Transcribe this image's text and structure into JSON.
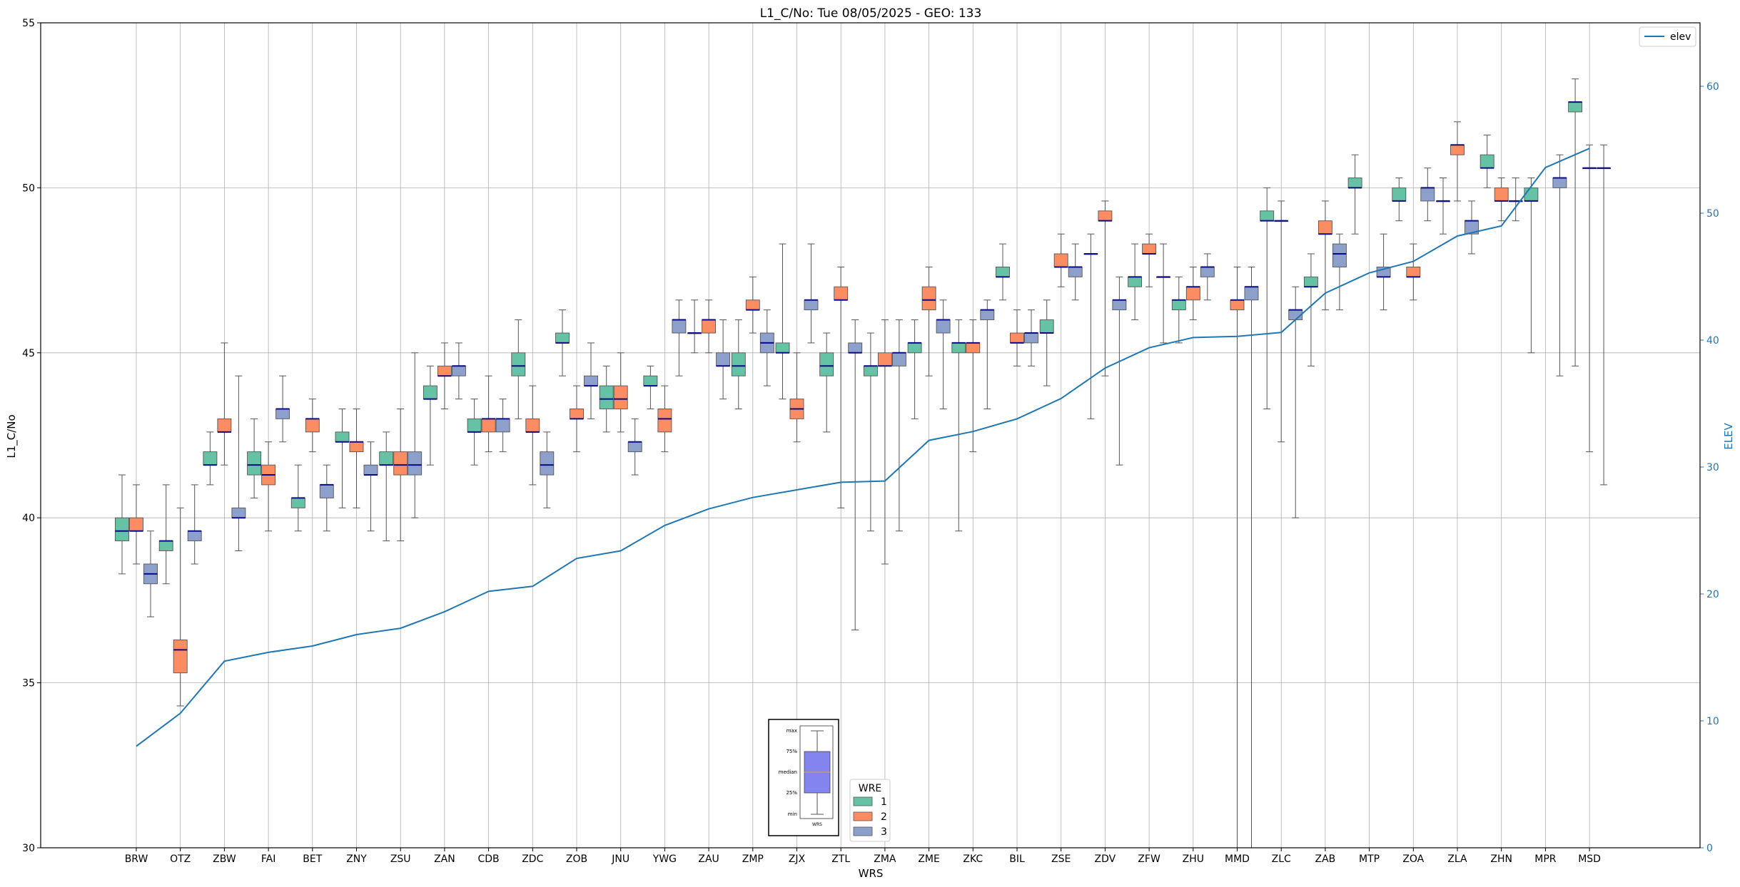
{
  "chart_data": {
    "type": "box",
    "title": "L1_C/No: Tue 08/05/2025 - GEO: 133",
    "xlabel": "WRS",
    "ylabel": "L1_C/No",
    "y2label": "ELEV",
    "ylim": [
      30,
      55
    ],
    "y2lim": [
      0,
      65
    ],
    "yticks": [
      30,
      35,
      40,
      45,
      50,
      55
    ],
    "y2ticks": [
      0,
      10,
      20,
      30,
      40,
      50,
      60
    ],
    "grid": true,
    "categories": [
      "BRW",
      "OTZ",
      "ZBW",
      "FAI",
      "BET",
      "ZNY",
      "ZSU",
      "ZAN",
      "CDB",
      "ZDC",
      "ZOB",
      "JNU",
      "YWG",
      "ZAU",
      "ZMP",
      "ZJX",
      "ZTL",
      "ZMA",
      "ZME",
      "ZKC",
      "BIL",
      "ZSE",
      "ZDV",
      "ZFW",
      "ZHU",
      "MMD",
      "ZLC",
      "ZAB",
      "MTP",
      "ZOA",
      "ZLA",
      "ZHN",
      "MPR",
      "MSD"
    ],
    "series_legend": {
      "title": "WRE",
      "entries": [
        {
          "label": "1",
          "color": "#66c2a5"
        },
        {
          "label": "2",
          "color": "#fc8d62"
        },
        {
          "label": "3",
          "color": "#8da0cb"
        }
      ],
      "placement": "bottom-center"
    },
    "line_legend": {
      "label": "elev",
      "color": "#1f77b4",
      "placement": "top-right"
    },
    "box_key": {
      "labels": [
        "max",
        "75%",
        "median",
        "25%",
        "min"
      ],
      "caption": "WRS",
      "color": "#7b7bf0"
    },
    "boxes": [
      {
        "cat": "BRW",
        "wre": 1,
        "min": 38.3,
        "q1": 39.3,
        "median": 39.6,
        "q3": 40.0,
        "max": 41.3
      },
      {
        "cat": "BRW",
        "wre": 2,
        "min": 38.6,
        "q1": 39.6,
        "median": 39.6,
        "q3": 40.0,
        "max": 41.0
      },
      {
        "cat": "BRW",
        "wre": 3,
        "min": 37.0,
        "q1": 38.0,
        "median": 38.3,
        "q3": 38.6,
        "max": 39.6
      },
      {
        "cat": "OTZ",
        "wre": 1,
        "min": 38.0,
        "q1": 39.0,
        "median": 39.3,
        "q3": 39.3,
        "max": 41.0
      },
      {
        "cat": "OTZ",
        "wre": 2,
        "min": 34.3,
        "q1": 35.3,
        "median": 36.0,
        "q3": 36.3,
        "max": 40.3
      },
      {
        "cat": "OTZ",
        "wre": 3,
        "min": 38.6,
        "q1": 39.3,
        "median": 39.6,
        "q3": 39.6,
        "max": 41.0
      },
      {
        "cat": "ZBW",
        "wre": 1,
        "min": 41.0,
        "q1": 41.6,
        "median": 41.6,
        "q3": 42.0,
        "max": 42.6
      },
      {
        "cat": "ZBW",
        "wre": 2,
        "min": 41.6,
        "q1": 42.6,
        "median": 42.6,
        "q3": 43.0,
        "max": 45.3
      },
      {
        "cat": "ZBW",
        "wre": 3,
        "min": 39.0,
        "q1": 40.0,
        "median": 40.0,
        "q3": 40.3,
        "max": 44.3
      },
      {
        "cat": "FAI",
        "wre": 1,
        "min": 40.6,
        "q1": 41.3,
        "median": 41.6,
        "q3": 42.0,
        "max": 43.0
      },
      {
        "cat": "FAI",
        "wre": 2,
        "min": 39.6,
        "q1": 41.0,
        "median": 41.3,
        "q3": 41.6,
        "max": 42.3
      },
      {
        "cat": "FAI",
        "wre": 3,
        "min": 42.3,
        "q1": 43.0,
        "median": 43.3,
        "q3": 43.3,
        "max": 44.3
      },
      {
        "cat": "BET",
        "wre": 1,
        "min": 39.6,
        "q1": 40.3,
        "median": 40.6,
        "q3": 40.6,
        "max": 41.6
      },
      {
        "cat": "BET",
        "wre": 2,
        "min": 42.0,
        "q1": 42.6,
        "median": 43.0,
        "q3": 43.0,
        "max": 43.6
      },
      {
        "cat": "BET",
        "wre": 3,
        "min": 39.6,
        "q1": 40.6,
        "median": 41.0,
        "q3": 41.0,
        "max": 41.6
      },
      {
        "cat": "ZNY",
        "wre": 1,
        "min": 40.3,
        "q1": 42.3,
        "median": 42.3,
        "q3": 42.6,
        "max": 43.3
      },
      {
        "cat": "ZNY",
        "wre": 2,
        "min": 40.3,
        "q1": 42.0,
        "median": 42.3,
        "q3": 42.3,
        "max": 43.3
      },
      {
        "cat": "ZNY",
        "wre": 3,
        "min": 39.6,
        "q1": 41.3,
        "median": 41.3,
        "q3": 41.6,
        "max": 42.3
      },
      {
        "cat": "ZSU",
        "wre": 1,
        "min": 39.3,
        "q1": 41.6,
        "median": 41.6,
        "q3": 42.0,
        "max": 42.6
      },
      {
        "cat": "ZSU",
        "wre": 2,
        "min": 39.3,
        "q1": 41.3,
        "median": 41.6,
        "q3": 42.0,
        "max": 43.3
      },
      {
        "cat": "ZSU",
        "wre": 3,
        "min": 40.0,
        "q1": 41.3,
        "median": 41.6,
        "q3": 42.0,
        "max": 45.0
      },
      {
        "cat": "ZAN",
        "wre": 1,
        "min": 41.6,
        "q1": 43.6,
        "median": 43.6,
        "q3": 44.0,
        "max": 44.6
      },
      {
        "cat": "ZAN",
        "wre": 2,
        "min": 43.3,
        "q1": 44.3,
        "median": 44.3,
        "q3": 44.6,
        "max": 45.3
      },
      {
        "cat": "ZAN",
        "wre": 3,
        "min": 43.6,
        "q1": 44.3,
        "median": 44.6,
        "q3": 44.6,
        "max": 45.3
      },
      {
        "cat": "CDB",
        "wre": 1,
        "min": 41.6,
        "q1": 42.6,
        "median": 42.6,
        "q3": 43.0,
        "max": 43.6
      },
      {
        "cat": "CDB",
        "wre": 2,
        "min": 42.0,
        "q1": 42.6,
        "median": 43.0,
        "q3": 43.0,
        "max": 44.3
      },
      {
        "cat": "CDB",
        "wre": 3,
        "min": 42.0,
        "q1": 42.6,
        "median": 43.0,
        "q3": 43.0,
        "max": 43.6
      },
      {
        "cat": "ZDC",
        "wre": 1,
        "min": 43.0,
        "q1": 44.3,
        "median": 44.6,
        "q3": 45.0,
        "max": 46.0
      },
      {
        "cat": "ZDC",
        "wre": 2,
        "min": 41.0,
        "q1": 42.6,
        "median": 42.6,
        "q3": 43.0,
        "max": 44.0
      },
      {
        "cat": "ZDC",
        "wre": 3,
        "min": 40.3,
        "q1": 41.3,
        "median": 41.6,
        "q3": 42.0,
        "max": 42.6
      },
      {
        "cat": "ZOB",
        "wre": 1,
        "min": 44.3,
        "q1": 45.3,
        "median": 45.3,
        "q3": 45.6,
        "max": 46.3
      },
      {
        "cat": "ZOB",
        "wre": 2,
        "min": 42.0,
        "q1": 43.0,
        "median": 43.0,
        "q3": 43.3,
        "max": 44.0
      },
      {
        "cat": "ZOB",
        "wre": 3,
        "min": 43.0,
        "q1": 44.0,
        "median": 44.0,
        "q3": 44.3,
        "max": 45.3
      },
      {
        "cat": "JNU",
        "wre": 1,
        "min": 42.6,
        "q1": 43.3,
        "median": 43.6,
        "q3": 44.0,
        "max": 44.6
      },
      {
        "cat": "JNU",
        "wre": 2,
        "min": 42.6,
        "q1": 43.3,
        "median": 43.6,
        "q3": 44.0,
        "max": 45.0
      },
      {
        "cat": "JNU",
        "wre": 3,
        "min": 41.3,
        "q1": 42.0,
        "median": 42.3,
        "q3": 42.3,
        "max": 43.0
      },
      {
        "cat": "YWG",
        "wre": 1,
        "min": 43.3,
        "q1": 44.0,
        "median": 44.0,
        "q3": 44.3,
        "max": 44.6
      },
      {
        "cat": "YWG",
        "wre": 2,
        "min": 42.0,
        "q1": 42.6,
        "median": 43.0,
        "q3": 43.3,
        "max": 44.0
      },
      {
        "cat": "YWG",
        "wre": 3,
        "min": 44.3,
        "q1": 45.6,
        "median": 46.0,
        "q3": 46.0,
        "max": 46.6
      },
      {
        "cat": "ZAU",
        "wre": 1,
        "min": 45.0,
        "q1": 45.6,
        "median": 45.6,
        "q3": 45.6,
        "max": 46.6
      },
      {
        "cat": "ZAU",
        "wre": 2,
        "min": 45.0,
        "q1": 45.6,
        "median": 46.0,
        "q3": 46.0,
        "max": 46.6
      },
      {
        "cat": "ZAU",
        "wre": 3,
        "min": 43.6,
        "q1": 44.6,
        "median": 44.6,
        "q3": 45.0,
        "max": 46.0
      },
      {
        "cat": "ZMP",
        "wre": 1,
        "min": 43.3,
        "q1": 44.3,
        "median": 44.6,
        "q3": 45.0,
        "max": 46.0
      },
      {
        "cat": "ZMP",
        "wre": 2,
        "min": 45.6,
        "q1": 46.3,
        "median": 46.3,
        "q3": 46.6,
        "max": 47.3
      },
      {
        "cat": "ZMP",
        "wre": 3,
        "min": 44.0,
        "q1": 45.0,
        "median": 45.3,
        "q3": 45.6,
        "max": 46.3
      },
      {
        "cat": "ZJX",
        "wre": 1,
        "min": 43.6,
        "q1": 45.0,
        "median": 45.0,
        "q3": 45.3,
        "max": 48.3
      },
      {
        "cat": "ZJX",
        "wre": 2,
        "min": 42.3,
        "q1": 43.0,
        "median": 43.3,
        "q3": 43.6,
        "max": 45.0
      },
      {
        "cat": "ZJX",
        "wre": 3,
        "min": 45.3,
        "q1": 46.3,
        "median": 46.6,
        "q3": 46.6,
        "max": 48.3
      },
      {
        "cat": "ZTL",
        "wre": 1,
        "min": 42.6,
        "q1": 44.3,
        "median": 44.6,
        "q3": 45.0,
        "max": 45.6
      },
      {
        "cat": "ZTL",
        "wre": 2,
        "min": 40.3,
        "q1": 46.6,
        "median": 46.6,
        "q3": 47.0,
        "max": 47.6
      },
      {
        "cat": "ZTL",
        "wre": 3,
        "min": 36.6,
        "q1": 45.0,
        "median": 45.0,
        "q3": 45.3,
        "max": 46.0
      },
      {
        "cat": "ZMA",
        "wre": 1,
        "min": 39.6,
        "q1": 44.3,
        "median": 44.6,
        "q3": 44.6,
        "max": 45.6
      },
      {
        "cat": "ZMA",
        "wre": 2,
        "min": 38.6,
        "q1": 44.6,
        "median": 44.6,
        "q3": 45.0,
        "max": 46.0
      },
      {
        "cat": "ZMA",
        "wre": 3,
        "min": 39.6,
        "q1": 44.6,
        "median": 45.0,
        "q3": 45.0,
        "max": 46.0
      },
      {
        "cat": "ZME",
        "wre": 1,
        "min": 43.0,
        "q1": 45.0,
        "median": 45.3,
        "q3": 45.3,
        "max": 46.0
      },
      {
        "cat": "ZME",
        "wre": 2,
        "min": 44.3,
        "q1": 46.3,
        "median": 46.6,
        "q3": 47.0,
        "max": 47.6
      },
      {
        "cat": "ZME",
        "wre": 3,
        "min": 43.3,
        "q1": 45.6,
        "median": 46.0,
        "q3": 46.0,
        "max": 46.6
      },
      {
        "cat": "ZKC",
        "wre": 1,
        "min": 39.6,
        "q1": 45.0,
        "median": 45.3,
        "q3": 45.3,
        "max": 46.0
      },
      {
        "cat": "ZKC",
        "wre": 2,
        "min": 42.0,
        "q1": 45.0,
        "median": 45.3,
        "q3": 45.3,
        "max": 46.0
      },
      {
        "cat": "ZKC",
        "wre": 3,
        "min": 43.3,
        "q1": 46.0,
        "median": 46.3,
        "q3": 46.3,
        "max": 46.6
      },
      {
        "cat": "BIL",
        "wre": 1,
        "min": 46.6,
        "q1": 47.3,
        "median": 47.3,
        "q3": 47.6,
        "max": 48.3
      },
      {
        "cat": "BIL",
        "wre": 2,
        "min": 44.6,
        "q1": 45.3,
        "median": 45.3,
        "q3": 45.6,
        "max": 46.3
      },
      {
        "cat": "BIL",
        "wre": 3,
        "min": 44.6,
        "q1": 45.3,
        "median": 45.6,
        "q3": 45.6,
        "max": 46.3
      },
      {
        "cat": "ZSE",
        "wre": 1,
        "min": 44.0,
        "q1": 45.6,
        "median": 45.6,
        "q3": 46.0,
        "max": 46.6
      },
      {
        "cat": "ZSE",
        "wre": 2,
        "min": 47.0,
        "q1": 47.6,
        "median": 47.6,
        "q3": 48.0,
        "max": 48.6
      },
      {
        "cat": "ZSE",
        "wre": 3,
        "min": 46.6,
        "q1": 47.3,
        "median": 47.6,
        "q3": 47.6,
        "max": 48.3
      },
      {
        "cat": "ZDV",
        "wre": 1,
        "min": 43.0,
        "q1": 48.0,
        "median": 48.0,
        "q3": 48.0,
        "max": 48.6
      },
      {
        "cat": "ZDV",
        "wre": 2,
        "min": 44.3,
        "q1": 49.0,
        "median": 49.0,
        "q3": 49.3,
        "max": 49.6
      },
      {
        "cat": "ZDV",
        "wre": 3,
        "min": 41.6,
        "q1": 46.3,
        "median": 46.6,
        "q3": 46.6,
        "max": 47.3
      },
      {
        "cat": "ZFW",
        "wre": 1,
        "min": 46.0,
        "q1": 47.0,
        "median": 47.3,
        "q3": 47.3,
        "max": 48.3
      },
      {
        "cat": "ZFW",
        "wre": 2,
        "min": 47.0,
        "q1": 48.0,
        "median": 48.0,
        "q3": 48.3,
        "max": 48.6
      },
      {
        "cat": "ZFW",
        "wre": 3,
        "min": 45.3,
        "q1": 47.3,
        "median": 47.3,
        "q3": 47.3,
        "max": 48.3
      },
      {
        "cat": "ZHU",
        "wre": 1,
        "min": 45.3,
        "q1": 46.3,
        "median": 46.6,
        "q3": 46.6,
        "max": 47.3
      },
      {
        "cat": "ZHU",
        "wre": 2,
        "min": 46.0,
        "q1": 46.6,
        "median": 47.0,
        "q3": 47.0,
        "max": 47.6
      },
      {
        "cat": "ZHU",
        "wre": 3,
        "min": 46.6,
        "q1": 47.3,
        "median": 47.6,
        "q3": 47.6,
        "max": 48.0
      },
      {
        "cat": "MMD",
        "wre": 2,
        "min": 30.0,
        "q1": 46.3,
        "median": 46.6,
        "q3": 46.6,
        "max": 47.6
      },
      {
        "cat": "MMD",
        "wre": 3,
        "min": 30.0,
        "q1": 46.6,
        "median": 47.0,
        "q3": 47.0,
        "max": 47.6
      },
      {
        "cat": "ZLC",
        "wre": 1,
        "min": 43.3,
        "q1": 49.0,
        "median": 49.0,
        "q3": 49.3,
        "max": 50.0
      },
      {
        "cat": "ZLC",
        "wre": 2,
        "min": 42.3,
        "q1": 49.0,
        "median": 49.0,
        "q3": 49.0,
        "max": 49.6
      },
      {
        "cat": "ZLC",
        "wre": 3,
        "min": 40.0,
        "q1": 46.0,
        "median": 46.3,
        "q3": 46.3,
        "max": 47.0
      },
      {
        "cat": "ZAB",
        "wre": 1,
        "min": 44.6,
        "q1": 47.0,
        "median": 47.0,
        "q3": 47.3,
        "max": 48.0
      },
      {
        "cat": "ZAB",
        "wre": 2,
        "min": 46.3,
        "q1": 48.6,
        "median": 48.6,
        "q3": 49.0,
        "max": 49.6
      },
      {
        "cat": "ZAB",
        "wre": 3,
        "min": 46.3,
        "q1": 47.6,
        "median": 48.0,
        "q3": 48.3,
        "max": 48.6
      },
      {
        "cat": "MTP",
        "wre": 1,
        "min": 48.6,
        "q1": 50.0,
        "median": 50.0,
        "q3": 50.3,
        "max": 51.0
      },
      {
        "cat": "MTP",
        "wre": 3,
        "min": 46.3,
        "q1": 47.3,
        "median": 47.3,
        "q3": 47.6,
        "max": 48.6
      },
      {
        "cat": "ZOA",
        "wre": 1,
        "min": 49.0,
        "q1": 49.6,
        "median": 49.6,
        "q3": 50.0,
        "max": 50.3
      },
      {
        "cat": "ZOA",
        "wre": 2,
        "min": 46.6,
        "q1": 47.3,
        "median": 47.3,
        "q3": 47.6,
        "max": 48.3
      },
      {
        "cat": "ZOA",
        "wre": 3,
        "min": 49.0,
        "q1": 49.6,
        "median": 50.0,
        "q3": 50.0,
        "max": 50.6
      },
      {
        "cat": "ZLA",
        "wre": 1,
        "min": 48.6,
        "q1": 49.6,
        "median": 49.6,
        "q3": 49.6,
        "max": 50.3
      },
      {
        "cat": "ZLA",
        "wre": 2,
        "min": 49.6,
        "q1": 51.0,
        "median": 51.3,
        "q3": 51.3,
        "max": 52.0
      },
      {
        "cat": "ZLA",
        "wre": 3,
        "min": 48.0,
        "q1": 48.6,
        "median": 49.0,
        "q3": 49.0,
        "max": 49.6
      },
      {
        "cat": "ZHN",
        "wre": 1,
        "min": 50.0,
        "q1": 50.6,
        "median": 50.6,
        "q3": 51.0,
        "max": 51.6
      },
      {
        "cat": "ZHN",
        "wre": 2,
        "min": 49.0,
        "q1": 49.6,
        "median": 49.6,
        "q3": 50.0,
        "max": 50.3
      },
      {
        "cat": "ZHN",
        "wre": 3,
        "min": 49.0,
        "q1": 49.6,
        "median": 49.6,
        "q3": 49.6,
        "max": 50.3
      },
      {
        "cat": "MPR",
        "wre": 1,
        "min": 45.0,
        "q1": 49.6,
        "median": 49.6,
        "q3": 50.0,
        "max": 50.3
      },
      {
        "cat": "MPR",
        "wre": 3,
        "min": 44.3,
        "q1": 50.0,
        "median": 50.3,
        "q3": 50.3,
        "max": 51.0
      },
      {
        "cat": "MSD",
        "wre": 1,
        "min": 44.6,
        "q1": 52.3,
        "median": 52.6,
        "q3": 52.6,
        "max": 53.3
      },
      {
        "cat": "MSD",
        "wre": 2,
        "min": 42.0,
        "q1": 50.6,
        "median": 50.6,
        "q3": 50.6,
        "max": 51.3
      },
      {
        "cat": "MSD",
        "wre": 3,
        "min": 41.0,
        "q1": 50.6,
        "median": 50.6,
        "q3": 50.6,
        "max": 51.3
      }
    ],
    "elev": {
      "name": "elev",
      "x": [
        "BRW",
        "OTZ",
        "ZBW",
        "FAI",
        "BET",
        "ZNY",
        "ZSU",
        "ZAN",
        "CDB",
        "ZDC",
        "ZOB",
        "JNU",
        "YWG",
        "ZAU",
        "ZMP",
        "ZJX",
        "ZTL",
        "ZMA",
        "ZME",
        "ZKC",
        "BIL",
        "ZSE",
        "ZDV",
        "ZFW",
        "ZHU",
        "MMD",
        "ZLC",
        "ZAB",
        "MTP",
        "ZOA",
        "ZLA",
        "ZHN",
        "MPR",
        "MSD"
      ],
      "values": [
        8.0,
        10.6,
        14.7,
        15.4,
        15.9,
        16.8,
        17.3,
        18.6,
        20.2,
        20.6,
        22.8,
        23.4,
        25.4,
        26.7,
        27.6,
        28.2,
        28.8,
        28.9,
        32.1,
        32.8,
        33.8,
        35.4,
        37.8,
        39.4,
        40.2,
        40.3,
        40.6,
        43.7,
        45.3,
        46.2,
        48.2,
        49.0,
        53.6,
        55.1
      ]
    }
  }
}
